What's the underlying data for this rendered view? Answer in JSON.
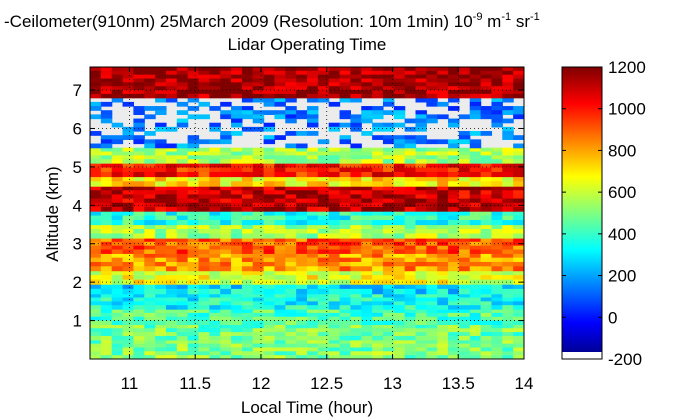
{
  "chart_data": {
    "type": "heatmap",
    "title": {
      "main": "-Ceilometer(910nm) 25March 2009 (Resolution: 10m 1min) 10",
      "exp1": "-9",
      "mid": " m",
      "exp2": "-1",
      "end": " sr",
      "exp3": "-1"
    },
    "subtitle": "Lidar Operating Time",
    "xlabel": "Local Time (hour)",
    "ylabel": "Altitude (km)",
    "xlim": [
      10.7,
      14.0
    ],
    "ylim": [
      0,
      7.6
    ],
    "xticks": [
      11,
      11.5,
      12,
      12.5,
      13,
      13.5,
      14
    ],
    "xtick_labels": [
      "11",
      "11.5",
      "12",
      "12.5",
      "13",
      "13.5",
      "14"
    ],
    "yticks": [
      1,
      2,
      3,
      4,
      5,
      6,
      7
    ],
    "ytick_labels": [
      "1",
      "2",
      "3",
      "4",
      "5",
      "6",
      "7"
    ],
    "grid": true,
    "colorbar": {
      "colormap": "jet",
      "range": [
        -200,
        1200
      ],
      "ticks": [
        1200,
        1000,
        800,
        600,
        400,
        200,
        0,
        -200
      ],
      "tick_labels": [
        "1200",
        "1000",
        "800",
        "600",
        "400",
        "200",
        "0",
        "-200"
      ]
    },
    "layers": [
      {
        "z0": 0.0,
        "z1": 0.5,
        "value": 500
      },
      {
        "z0": 0.5,
        "z1": 0.9,
        "value": 480
      },
      {
        "z0": 0.9,
        "z1": 1.3,
        "value": 430
      },
      {
        "z0": 1.3,
        "z1": 1.7,
        "value": 340
      },
      {
        "z0": 1.7,
        "z1": 1.95,
        "value": 300
      },
      {
        "z0": 1.95,
        "z1": 2.3,
        "value": 650
      },
      {
        "z0": 2.3,
        "z1": 2.75,
        "value": 820
      },
      {
        "z0": 2.75,
        "z1": 3.15,
        "value": 900
      },
      {
        "z0": 3.15,
        "z1": 3.5,
        "value": 560
      },
      {
        "z0": 3.5,
        "z1": 3.85,
        "value": 380
      },
      {
        "z0": 3.85,
        "z1": 4.5,
        "value": 1100
      },
      {
        "z0": 4.5,
        "z1": 4.75,
        "value": 700
      },
      {
        "z0": 4.75,
        "z1": 5.1,
        "value": 1000
      },
      {
        "z0": 5.1,
        "z1": 5.5,
        "value": 560
      },
      {
        "z0": 5.5,
        "z1": 6.8,
        "value": 150
      },
      {
        "z0": 6.8,
        "z1": 7.6,
        "value": 1150
      }
    ],
    "no_data_color": "#ececec"
  }
}
